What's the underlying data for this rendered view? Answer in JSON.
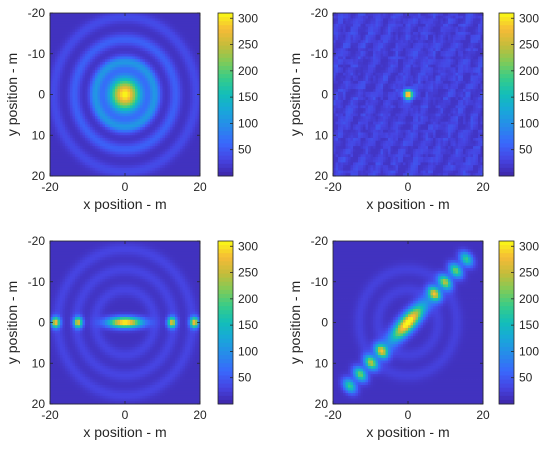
{
  "chart_data": [
    {
      "type": "heatmap",
      "pattern": "broad central beam with concentric rings",
      "xlabel": "x position - m",
      "ylabel": "y position - m",
      "xlim": [
        -20,
        20
      ],
      "ylim": [
        -20,
        20
      ],
      "y_axis_direction": "reversed",
      "x_ticks": [
        "-20",
        "0",
        "20"
      ],
      "y_ticks": [
        "-20",
        "-10",
        "0",
        "10",
        "20"
      ],
      "colorbar": {
        "range": [
          0,
          310
        ],
        "ticks": [
          "50",
          "100",
          "150",
          "200",
          "250",
          "300"
        ]
      },
      "colormap": "parula",
      "peak": {
        "x": 0,
        "y": 0,
        "value": 310
      },
      "main_lobe_radius_m": 3,
      "ring_radii_m": [
        8,
        13.5,
        19
      ]
    },
    {
      "type": "heatmap",
      "pattern": "narrow central spot on speckled background",
      "xlabel": "x position - m",
      "ylabel": "y position - m",
      "xlim": [
        -20,
        20
      ],
      "ylim": [
        -20,
        20
      ],
      "y_axis_direction": "reversed",
      "x_ticks": [
        "-20",
        "0",
        "20"
      ],
      "y_ticks": [
        "-20",
        "-10",
        "0",
        "10",
        "20"
      ],
      "colorbar": {
        "range": [
          0,
          310
        ],
        "ticks": [
          "50",
          "100",
          "150",
          "200",
          "250",
          "300"
        ]
      },
      "colormap": "parula",
      "peak": {
        "x": 0,
        "y": 0,
        "value": 310
      },
      "spot_radius_m": 0.8
    },
    {
      "type": "heatmap",
      "pattern": "horizontal line of lobes along y = 0",
      "xlabel": "x position - m",
      "ylabel": "y position - m",
      "xlim": [
        -20,
        20
      ],
      "ylim": [
        -20,
        20
      ],
      "y_axis_direction": "reversed",
      "x_ticks": [
        "-20",
        "0",
        "20"
      ],
      "y_ticks": [
        "-20",
        "-10",
        "0",
        "10",
        "20"
      ],
      "colorbar": {
        "range": [
          0,
          310
        ],
        "ticks": [
          "50",
          "100",
          "150",
          "200",
          "250",
          "300"
        ]
      },
      "colormap": "parula",
      "peak": {
        "x": 0,
        "y": 0,
        "value": 310
      },
      "lobe_centers_x_m": [
        -18.5,
        -12.5,
        12.5,
        18.5
      ],
      "lobe_values": [
        0.85,
        0.8,
        0.8,
        0.85
      ]
    },
    {
      "type": "heatmap",
      "pattern": "diagonal line of lobes from (-20, 20) to (20, -20)",
      "xlabel": "x position - m",
      "ylabel": "y position - m",
      "xlim": [
        -20,
        20
      ],
      "ylim": [
        -20,
        20
      ],
      "y_axis_direction": "reversed",
      "x_ticks": [
        "-20",
        "0",
        "20"
      ],
      "y_ticks": [
        "-20",
        "-10",
        "0",
        "10",
        "20"
      ],
      "colorbar": {
        "range": [
          0,
          310
        ],
        "ticks": [
          "50",
          "100",
          "150",
          "200",
          "250",
          "300"
        ]
      },
      "colormap": "parula",
      "peak": {
        "x": 0,
        "y": 0,
        "value": 310
      },
      "lobe_positions_along_diagonal_m": [
        -22,
        -18,
        -14,
        -10,
        10,
        14,
        18,
        22
      ],
      "lobe_values": [
        0.55,
        0.65,
        0.72,
        0.8,
        0.8,
        0.72,
        0.65,
        0.55
      ]
    }
  ]
}
